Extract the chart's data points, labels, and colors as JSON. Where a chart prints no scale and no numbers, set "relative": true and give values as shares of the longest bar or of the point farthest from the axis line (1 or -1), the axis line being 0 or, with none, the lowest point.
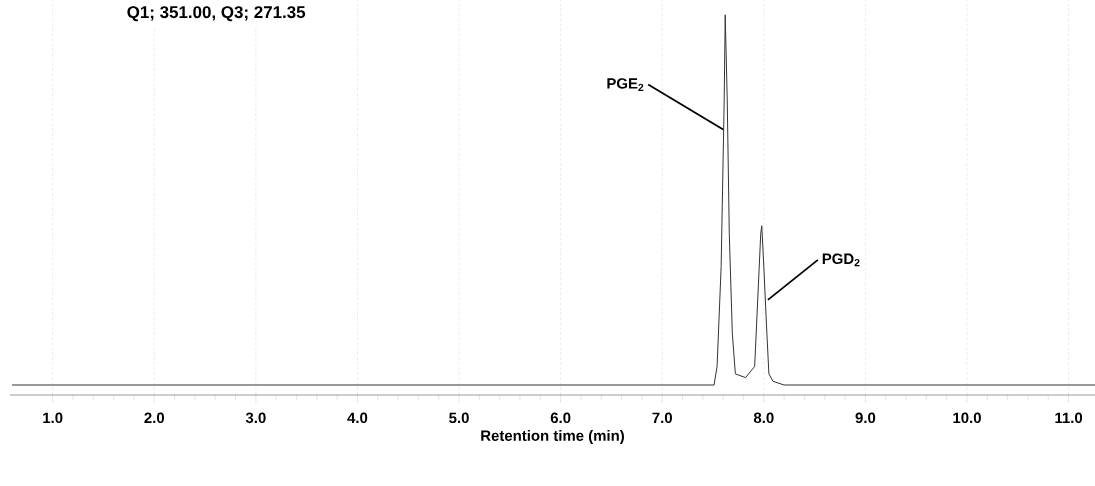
{
  "chart_data": {
    "type": "line",
    "title": "Q1; 351.00, Q3; 271.35",
    "xlabel": "Retention time (min)",
    "relative": true,
    "x": [
      0.6,
      7.45,
      7.51,
      7.54,
      7.58,
      7.61,
      7.62,
      7.64,
      7.66,
      7.69,
      7.72,
      7.82,
      7.91,
      7.94,
      7.97,
      7.98,
      8.0,
      8.03,
      8.05,
      8.09,
      8.2,
      11.26
    ],
    "series": [
      {
        "color": "#333333",
        "values": [
          0,
          0,
          0,
          0.05,
          0.32,
          0.77,
          1,
          0.77,
          0.41,
          0.14,
          0.03,
          0.02,
          0.05,
          0.23,
          0.41,
          0.43,
          0.32,
          0.14,
          0.03,
          0.01,
          0,
          0
        ]
      }
    ],
    "xlim": [
      0.58,
      11.26
    ],
    "xticks": [
      {
        "value": 1,
        "label": "1.0"
      },
      {
        "value": 2,
        "label": "2.0"
      },
      {
        "value": 3,
        "label": "3.0"
      },
      {
        "value": 4,
        "label": "4.0"
      },
      {
        "value": 5,
        "label": "5.0"
      },
      {
        "value": 6,
        "label": "6.0"
      },
      {
        "value": 7,
        "label": "7.0"
      },
      {
        "value": 8,
        "label": "8.0"
      },
      {
        "value": 9,
        "label": "9.0"
      },
      {
        "value": 10,
        "label": "10.0"
      },
      {
        "value": 11,
        "label": "11.0"
      }
    ],
    "grid": true,
    "annotations": [
      {
        "text": "PGE$_{2}$",
        "x": 7.6,
        "y": 0.69
      },
      {
        "text": "PGD$_{2}$",
        "x": 8.04,
        "y": 0.23
      }
    ]
  }
}
